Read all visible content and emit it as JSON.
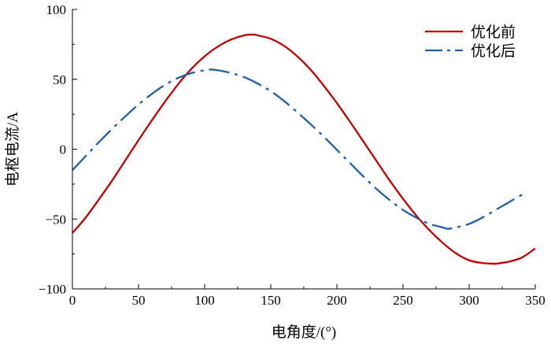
{
  "chart_data": {
    "type": "line",
    "xlabel": "电角度/(°)",
    "ylabel": "电枢电流/A",
    "xlim": [
      0,
      350
    ],
    "ylim": [
      -100,
      100
    ],
    "x_ticks": [
      "0",
      "50",
      "100",
      "150",
      "200",
      "250",
      "300",
      "350"
    ],
    "y_ticks": [
      "100",
      "50",
      "0",
      "−50",
      "−100"
    ],
    "grid": false,
    "legend_position": "top-right",
    "series": [
      {
        "name": "优化前",
        "color": "#c00000",
        "line_style": "solid",
        "x": [
          0,
          10,
          20,
          30,
          40,
          50,
          60,
          70,
          80,
          90,
          100,
          110,
          120,
          130,
          137,
          140,
          150,
          160,
          170,
          180,
          190,
          200,
          210,
          220,
          230,
          240,
          250,
          260,
          270,
          280,
          290,
          300,
          310,
          319,
          320,
          330,
          340,
          350
        ],
        "y": [
          -60,
          -49,
          -36,
          -22.5,
          -8,
          6.5,
          20.5,
          34,
          46.5,
          57.5,
          66.5,
          73.5,
          78.5,
          81.5,
          82,
          81.5,
          79,
          74,
          66.5,
          57,
          45.5,
          33,
          19.5,
          5.5,
          -8.5,
          -22.5,
          -35.5,
          -47.5,
          -58,
          -67,
          -74.5,
          -79.5,
          -81.5,
          -82,
          -82,
          -80.5,
          -77.5,
          -71
        ]
      },
      {
        "name": "优化后",
        "color": "#1f5fa8",
        "line_style": "dash-dot",
        "x": [
          0,
          10,
          20,
          30,
          40,
          50,
          60,
          70,
          80,
          90,
          100,
          104,
          110,
          120,
          130,
          140,
          150,
          160,
          170,
          180,
          190,
          200,
          210,
          220,
          230,
          240,
          250,
          260,
          270,
          280,
          284,
          290,
          300,
          310,
          320,
          330,
          343
        ],
        "y": [
          -15,
          -5,
          5,
          14.5,
          23.5,
          32,
          39.5,
          46,
          51,
          54.5,
          56.5,
          57,
          56.5,
          54.5,
          51.5,
          47,
          41.5,
          34.5,
          26.5,
          18,
          9,
          -0.5,
          -10,
          -19.5,
          -28.5,
          -36.5,
          -43.5,
          -49,
          -53.5,
          -56,
          -57,
          -56,
          -53.5,
          -49,
          -43.5,
          -38,
          -31
        ]
      }
    ]
  }
}
